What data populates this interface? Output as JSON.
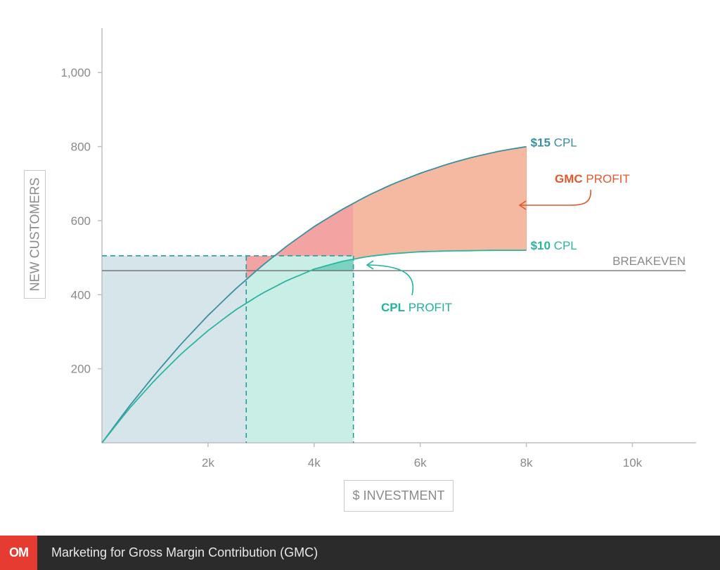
{
  "chart_data": {
    "type": "area",
    "xlabel": "$ INVESTMENT",
    "ylabel": "NEW CUSTOMERS",
    "xlim": [
      0,
      11200
    ],
    "ylim": [
      0,
      1120
    ],
    "x_ticks": [
      {
        "value": 2000,
        "label": "2k"
      },
      {
        "value": 4000,
        "label": "4k"
      },
      {
        "value": 6000,
        "label": "6k"
      },
      {
        "value": 8000,
        "label": "8k"
      },
      {
        "value": 10000,
        "label": "10k"
      }
    ],
    "y_ticks": [
      {
        "value": 200,
        "label": "200"
      },
      {
        "value": 400,
        "label": "400"
      },
      {
        "value": 600,
        "label": "600"
      },
      {
        "value": 800,
        "label": "800"
      },
      {
        "value": 1000,
        "label": "1,000"
      }
    ],
    "series": [
      {
        "name": "$15 CPL",
        "label_bold": "$15",
        "label_rest": " CPL",
        "color": "#3a8fa3",
        "x": [
          0,
          500,
          1000,
          1500,
          2000,
          2500,
          3000,
          3500,
          4000,
          4500,
          5000,
          5500,
          6000,
          6500,
          7000,
          7500,
          8000
        ],
        "y": [
          0,
          96,
          185,
          268,
          344,
          413,
          476,
          533,
          584,
          628,
          667,
          700,
          728,
          752,
          772,
          788,
          800
        ]
      },
      {
        "name": "$10 CPL",
        "label_bold": "$10",
        "label_rest": " CPL",
        "color": "#2bb5a0",
        "x": [
          0,
          500,
          1000,
          1500,
          2000,
          2500,
          3000,
          3500,
          4000,
          4500,
          5000,
          5500,
          6000,
          6500,
          7000,
          7500,
          8000
        ],
        "y": [
          0,
          90,
          170,
          241,
          303,
          357,
          402,
          439,
          469,
          489,
          503,
          511,
          516,
          518,
          519,
          520,
          520
        ]
      }
    ],
    "breakeven": {
      "label": "BREAKEVEN",
      "y": 465
    },
    "markers": {
      "x1": 2720,
      "x2": 4740,
      "y": 505
    },
    "annotations": {
      "gmc": {
        "bold": "GMC",
        "rest": " PROFIT",
        "color": "#e0592e"
      },
      "cpl": {
        "bold": "CPL",
        "rest": " PROFIT",
        "color": "#20b39b"
      }
    },
    "colors": {
      "blue_region": "#d5e5e9",
      "teal_region": "#c9eee6",
      "red_region": "#f3a3a2",
      "orange_region": "#f5b9a2",
      "cpl_profit_region": "#7dd3c2",
      "axis": "#bfbfbf",
      "breakeven_line": "#555555"
    }
  },
  "footer": {
    "logo": "OM",
    "title": "Marketing for Gross Margin Contribution (GMC)"
  }
}
